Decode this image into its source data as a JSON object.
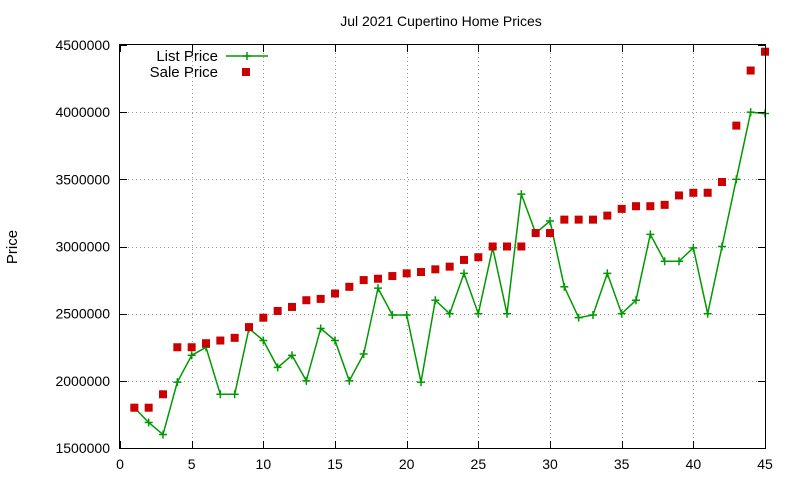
{
  "chart_data": {
    "type": "line",
    "title": "Jul 2021 Cupertino Home Prices",
    "xlabel": "",
    "ylabel": "Price",
    "xlim": [
      0,
      45
    ],
    "ylim": [
      1500000,
      4500000
    ],
    "xticks": [
      0,
      5,
      10,
      15,
      20,
      25,
      30,
      35,
      40,
      45
    ],
    "yticks": [
      1500000,
      2000000,
      2500000,
      3000000,
      3500000,
      4000000,
      4500000
    ],
    "grid": true,
    "legend_position": "top-left",
    "series": [
      {
        "name": "List Price",
        "style": "linespoints",
        "marker": "plus",
        "color": "#009900",
        "x": [
          1,
          2,
          3,
          4,
          5,
          6,
          7,
          8,
          9,
          10,
          11,
          12,
          13,
          14,
          15,
          16,
          17,
          18,
          19,
          20,
          21,
          22,
          23,
          24,
          25,
          26,
          27,
          28,
          29,
          30,
          31,
          32,
          33,
          34,
          35,
          36,
          37,
          38,
          39,
          40,
          41,
          42,
          43,
          44,
          45
        ],
        "values": [
          1800000,
          1690000,
          1600000,
          1990000,
          2190000,
          2250000,
          1900000,
          1900000,
          2390000,
          2300000,
          2100000,
          2190000,
          2000000,
          2390000,
          2300000,
          2000000,
          2200000,
          2690000,
          2490000,
          2490000,
          1990000,
          2600000,
          2500000,
          2800000,
          2500000,
          2990000,
          2500000,
          3390000,
          3100000,
          3190000,
          2700000,
          2470000,
          2490000,
          2800000,
          2500000,
          2600000,
          3090000,
          2890000,
          2890000,
          2990000,
          2500000,
          3000000,
          3500000,
          4000000,
          3990000
        ]
      },
      {
        "name": "Sale Price",
        "style": "points",
        "marker": "square",
        "color": "#cc0000",
        "x": [
          1,
          2,
          3,
          4,
          5,
          6,
          7,
          8,
          9,
          10,
          11,
          12,
          13,
          14,
          15,
          16,
          17,
          18,
          19,
          20,
          21,
          22,
          23,
          24,
          25,
          26,
          27,
          28,
          29,
          30,
          31,
          32,
          33,
          34,
          35,
          36,
          37,
          38,
          39,
          40,
          41,
          42,
          43,
          44,
          45
        ],
        "values": [
          1800000,
          1800000,
          1900000,
          2250000,
          2250000,
          2280000,
          2300000,
          2320000,
          2400000,
          2470000,
          2520000,
          2550000,
          2600000,
          2610000,
          2650000,
          2700000,
          2750000,
          2760000,
          2780000,
          2800000,
          2810000,
          2830000,
          2850000,
          2900000,
          2920000,
          3000000,
          3000000,
          3000000,
          3100000,
          3100000,
          3200000,
          3200000,
          3200000,
          3230000,
          3280000,
          3300000,
          3300000,
          3310000,
          3380000,
          3400000,
          3400000,
          3480000,
          3900000,
          4310000,
          4450000
        ]
      }
    ]
  }
}
